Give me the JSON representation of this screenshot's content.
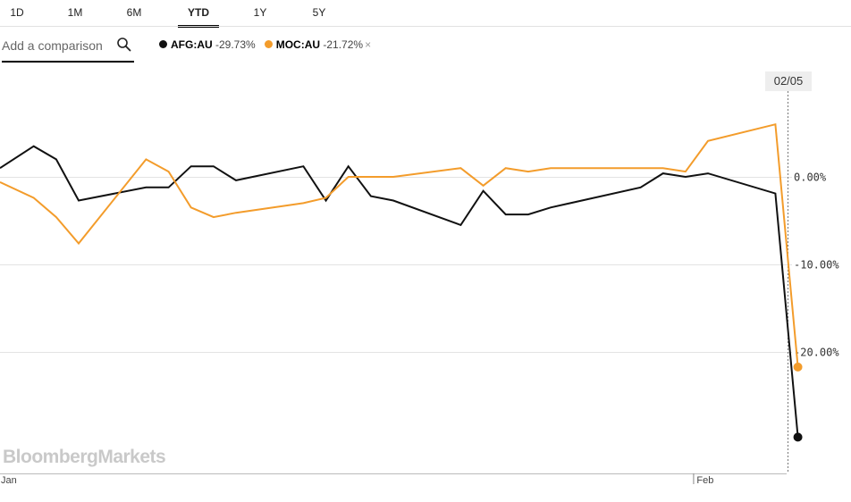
{
  "ranges": [
    "1D",
    "1M",
    "6M",
    "YTD",
    "1Y",
    "5Y"
  ],
  "active_range": "YTD",
  "search": {
    "placeholder": "Add a comparison"
  },
  "legend": [
    {
      "symbol": "AFG:AU",
      "change": "-29.73%",
      "color": "#111111",
      "removable": false
    },
    {
      "symbol": "MOC:AU",
      "change": "-21.72%",
      "color": "#f39c2b",
      "removable": true
    }
  ],
  "remove_glyph": "×",
  "crosshair_label": "02/05",
  "watermark": "BloombergMarkets",
  "chart_data": {
    "type": "line",
    "ylim": [
      -30.5,
      6.5
    ],
    "y_ticks": [
      0,
      -10,
      -20
    ],
    "y_tick_labels": [
      "0.00%",
      "-10.00%",
      "-20.00%"
    ],
    "x_tick_labels": [
      {
        "label": "Jan",
        "index": 0
      },
      {
        "label": "Feb",
        "index": 31
      }
    ],
    "x_count": 36,
    "grid": true,
    "series": [
      {
        "name": "AFG:AU",
        "color": "#111111",
        "x": [
          0,
          1.5,
          2.5,
          3.5,
          6.5,
          7.5,
          8.5,
          9.5,
          10.5,
          13.5,
          14.5,
          15.5,
          16.5,
          17.5,
          20.5,
          21.5,
          22.5,
          23.5,
          24.5,
          28.5,
          29.5,
          30.5,
          31.5,
          34.5,
          35.5
        ],
        "values": [
          1.0,
          3.5,
          2.0,
          -2.7,
          -1.2,
          -1.2,
          1.2,
          1.2,
          -0.4,
          1.2,
          -2.7,
          1.2,
          -2.2,
          -2.7,
          -5.5,
          -1.6,
          -4.3,
          -4.3,
          -3.5,
          -1.2,
          0.4,
          0.0,
          0.4,
          -1.9,
          -29.73
        ]
      },
      {
        "name": "MOC:AU",
        "color": "#f39c2b",
        "x": [
          0,
          1.5,
          2.5,
          3.5,
          6.5,
          7.5,
          8.5,
          9.5,
          10.5,
          13.5,
          14.5,
          15.5,
          17.5,
          20.5,
          21.5,
          22.5,
          23.5,
          24.5,
          29.5,
          30.5,
          31.5,
          34.5,
          35.5
        ],
        "values": [
          -0.6,
          -2.4,
          -4.6,
          -7.6,
          2.0,
          0.6,
          -3.5,
          -4.6,
          -4.1,
          -3.0,
          -2.4,
          0.0,
          0.0,
          1.0,
          -1.0,
          1.0,
          0.6,
          1.0,
          1.0,
          0.6,
          4.1,
          6.0,
          -21.72
        ]
      }
    ]
  }
}
